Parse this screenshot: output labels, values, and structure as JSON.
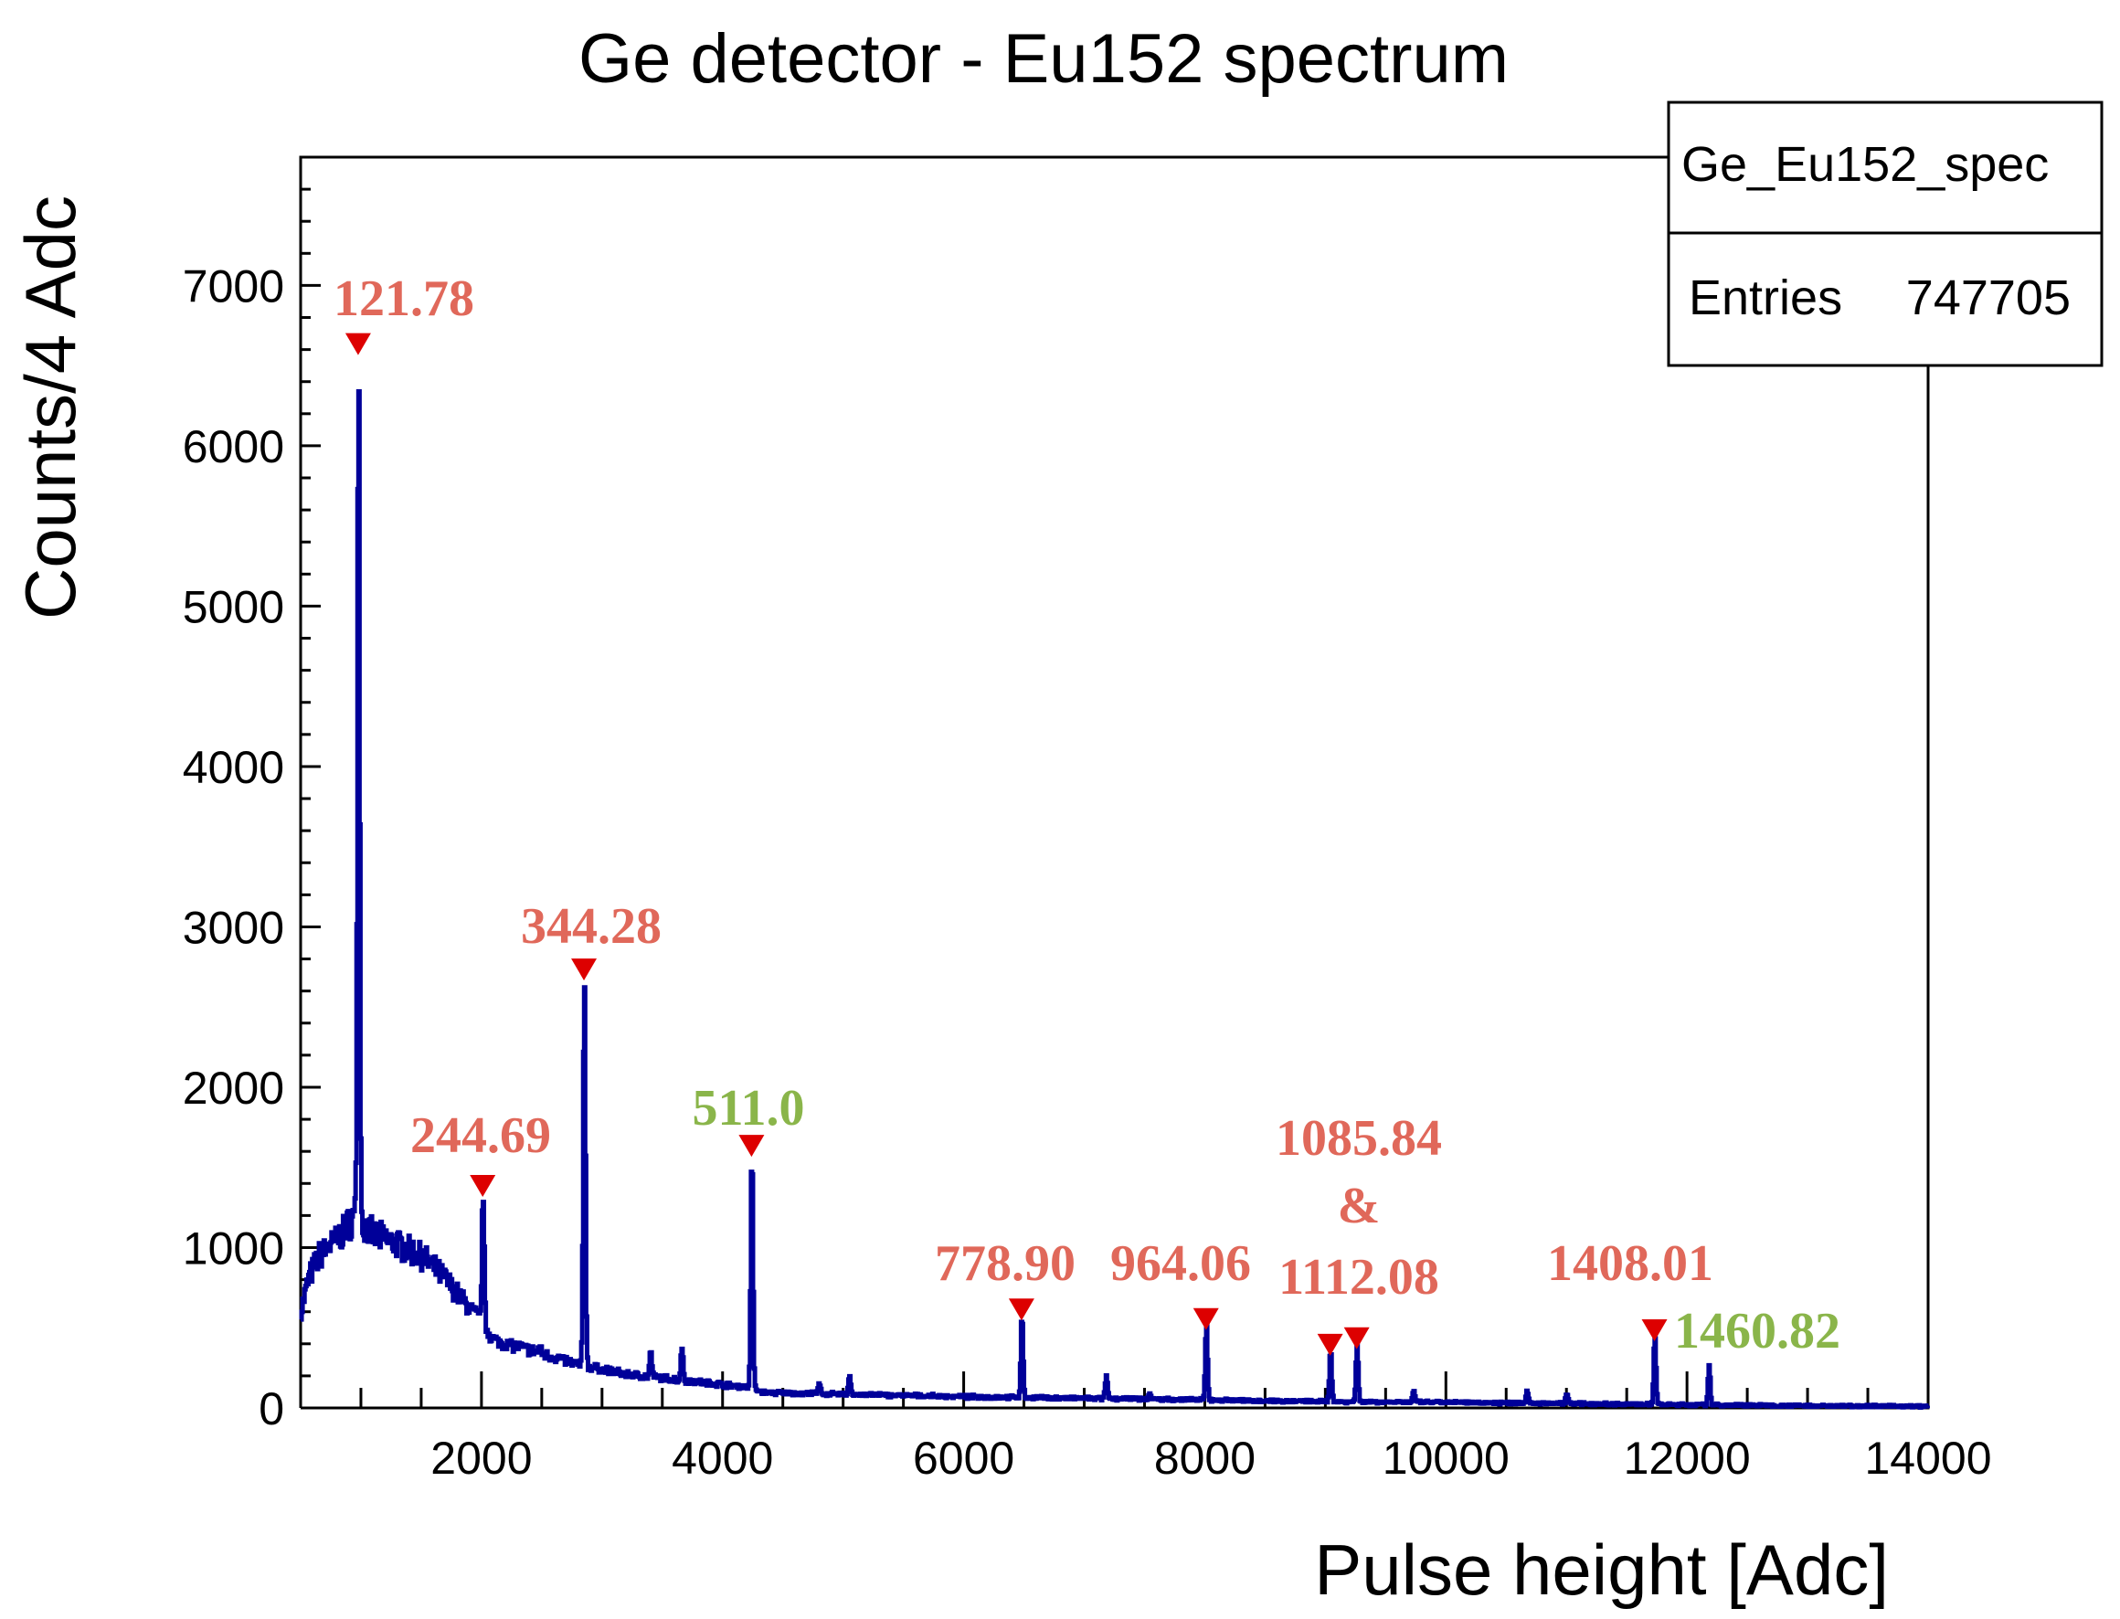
{
  "chart_data": {
    "type": "line",
    "title": "Ge detector - Eu152 spectrum",
    "xlabel": "Pulse height [Adc]",
    "ylabel": "Counts/4 Adc",
    "xlim": [
      500,
      14000
    ],
    "ylim": [
      0,
      7800
    ],
    "x_ticks": [
      2000,
      4000,
      6000,
      8000,
      10000,
      12000,
      14000
    ],
    "x_tick_labels": [
      "2000",
      "4000",
      "6000",
      "8000",
      "10000",
      "12000",
      "14000"
    ],
    "y_ticks": [
      0,
      1000,
      2000,
      3000,
      4000,
      5000,
      6000,
      7000
    ],
    "y_tick_labels": [
      "0",
      "1000",
      "2000",
      "3000",
      "4000",
      "5000",
      "6000",
      "7000"
    ],
    "grid": false,
    "legend": "none",
    "series_color": "#000099",
    "marker_color": "#dd0000",
    "stats_box": {
      "name": "Ge_Eu152_spec",
      "entries_label": "Entries",
      "entries_value": "747705",
      "placement": "top-right"
    },
    "continuum": [
      [
        500,
        600
      ],
      [
        560,
        800
      ],
      [
        650,
        950
      ],
      [
        800,
        1050
      ],
      [
        950,
        1200
      ],
      [
        1000,
        1150
      ],
      [
        1100,
        1080
      ],
      [
        1300,
        1020
      ],
      [
        1500,
        950
      ],
      [
        1700,
        800
      ],
      [
        1900,
        620
      ],
      [
        2000,
        540
      ],
      [
        2100,
        420
      ],
      [
        2400,
        360
      ],
      [
        2800,
        270
      ],
      [
        3200,
        210
      ],
      [
        3700,
        170
      ],
      [
        4200,
        130
      ],
      [
        4350,
        95
      ],
      [
        5000,
        85
      ],
      [
        6000,
        70
      ],
      [
        7000,
        60
      ],
      [
        8000,
        50
      ],
      [
        9000,
        40
      ],
      [
        10000,
        35
      ],
      [
        11000,
        28
      ],
      [
        12000,
        20
      ],
      [
        13000,
        14
      ],
      [
        14000,
        10
      ]
    ],
    "peaks": [
      {
        "adc": 977,
        "counts": 6600,
        "energy": "121.78",
        "label_color": "#e0685a",
        "marker": true
      },
      {
        "adc": 2010,
        "counts": 1350,
        "energy": "244.69",
        "label_color": "#e0685a",
        "marker": true
      },
      {
        "adc": 2850,
        "counts": 2700,
        "energy": "344.28",
        "label_color": "#e0685a",
        "marker": true
      },
      {
        "adc": 4240,
        "counts": 1600,
        "energy": "511.0",
        "label_color": "#8ab54a",
        "marker": true
      },
      {
        "adc": 6480,
        "counts": 580,
        "energy": "778.90",
        "label_color": "#e0685a",
        "marker": true
      },
      {
        "adc": 8010,
        "counts": 520,
        "energy": "964.06",
        "label_color": "#e0685a",
        "marker": true
      },
      {
        "adc": 9040,
        "counts": 360,
        "energy": "1085.84",
        "label_color": "#e0685a",
        "marker": true
      },
      {
        "adc": 9260,
        "counts": 400,
        "energy": "1112.08",
        "label_color": "#e0685a",
        "marker": true
      },
      {
        "adc": 11730,
        "counts": 450,
        "energy": "1408.01",
        "label_color": "#e0685a",
        "marker": true
      },
      {
        "adc": 12180,
        "counts": 260,
        "energy": "1460.82",
        "label_color": "#8ab54a",
        "marker": false
      }
    ],
    "minor_peaks": [
      {
        "adc": 2480,
        "counts": 380
      },
      {
        "adc": 3400,
        "counts": 350
      },
      {
        "adc": 3660,
        "counts": 380
      },
      {
        "adc": 4800,
        "counts": 150
      },
      {
        "adc": 5050,
        "counts": 200
      },
      {
        "adc": 7180,
        "counts": 200
      },
      {
        "adc": 7540,
        "counts": 90
      },
      {
        "adc": 9730,
        "counts": 100
      },
      {
        "adc": 10670,
        "counts": 110
      },
      {
        "adc": 11000,
        "counts": 90
      }
    ],
    "annotations": {
      "ampersand": "&"
    }
  }
}
